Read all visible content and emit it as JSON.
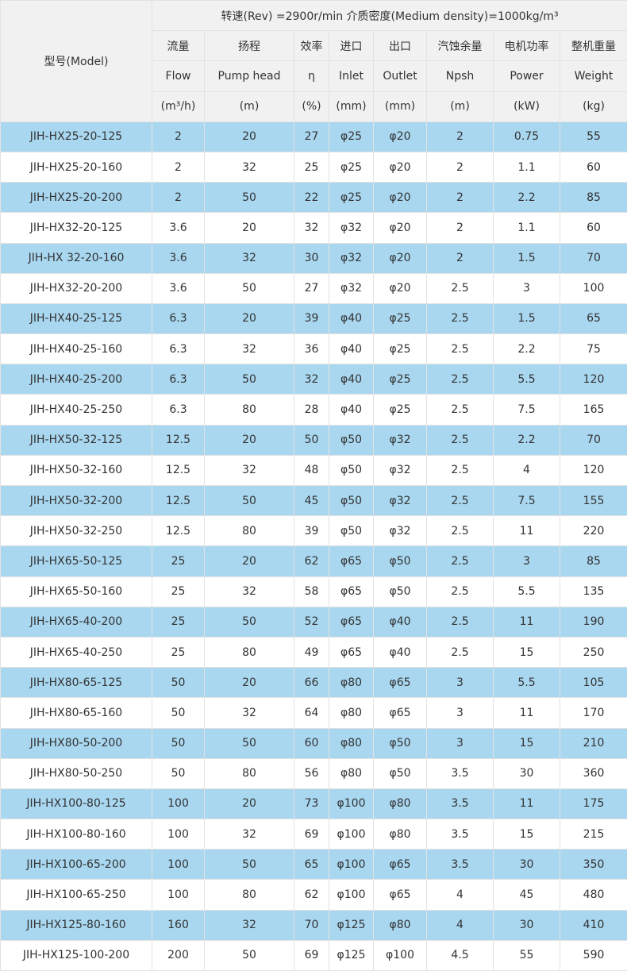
{
  "header": {
    "model_label": "型号(Model)",
    "conditions": "转速(Rev) =2900r/min   介质密度(Medium density)=1000kg/m³",
    "columns": [
      {
        "cn": "流量",
        "en": "Flow",
        "unit": "(m³/h)"
      },
      {
        "cn": "扬程",
        "en": "Pump head",
        "unit": "(m)"
      },
      {
        "cn": "效率",
        "en": "η",
        "unit": "(%)"
      },
      {
        "cn": "进口",
        "en": "Inlet",
        "unit": "(mm)"
      },
      {
        "cn": "出口",
        "en": "Outlet",
        "unit": "(mm)"
      },
      {
        "cn": "汽蚀余量",
        "en": "Npsh",
        "unit": "(m)"
      },
      {
        "cn": "电机功率",
        "en": "Power",
        "unit": "(kW)"
      },
      {
        "cn": "整机重量",
        "en": "Weight",
        "unit": "(kg)"
      }
    ]
  },
  "colors": {
    "header_bg": "#f1f1f1",
    "alt_row_bg": "#a9d7f0",
    "border": "#e2e2e2"
  },
  "rows": [
    [
      "JIH-HX25-20-125",
      "2",
      "20",
      "27",
      "φ25",
      "φ20",
      "2",
      "0.75",
      "55"
    ],
    [
      "JIH-HX25-20-160",
      "2",
      "32",
      "25",
      "φ25",
      "φ20",
      "2",
      "1.1",
      "60"
    ],
    [
      "JIH-HX25-20-200",
      "2",
      "50",
      "22",
      "φ25",
      "φ20",
      "2",
      "2.2",
      "85"
    ],
    [
      "JIH-HX32-20-125",
      "3.6",
      "20",
      "32",
      "φ32",
      "φ20",
      "2",
      "1.1",
      "60"
    ],
    [
      "JIH-HX 32-20-160",
      "3.6",
      "32",
      "30",
      "φ32",
      "φ20",
      "2",
      "1.5",
      "70"
    ],
    [
      "JIH-HX32-20-200",
      "3.6",
      "50",
      "27",
      "φ32",
      "φ20",
      "2.5",
      "3",
      "100"
    ],
    [
      "JIH-HX40-25-125",
      "6.3",
      "20",
      "39",
      "φ40",
      "φ25",
      "2.5",
      "1.5",
      "65"
    ],
    [
      "JIH-HX40-25-160",
      "6.3",
      "32",
      "36",
      "φ40",
      "φ25",
      "2.5",
      "2.2",
      "75"
    ],
    [
      "JIH-HX40-25-200",
      "6.3",
      "50",
      "32",
      "φ40",
      "φ25",
      "2.5",
      "5.5",
      "120"
    ],
    [
      "JIH-HX40-25-250",
      "6.3",
      "80",
      "28",
      "φ40",
      "φ25",
      "2.5",
      "7.5",
      "165"
    ],
    [
      "JIH-HX50-32-125",
      "12.5",
      "20",
      "50",
      "φ50",
      "φ32",
      "2.5",
      "2.2",
      "70"
    ],
    [
      "JIH-HX50-32-160",
      "12.5",
      "32",
      "48",
      "φ50",
      "φ32",
      "2.5",
      "4",
      "120"
    ],
    [
      "JIH-HX50-32-200",
      "12.5",
      "50",
      "45",
      "φ50",
      "φ32",
      "2.5",
      "7.5",
      "155"
    ],
    [
      "JIH-HX50-32-250",
      "12.5",
      "80",
      "39",
      "φ50",
      "φ32",
      "2.5",
      "11",
      "220"
    ],
    [
      "JIH-HX65-50-125",
      "25",
      "20",
      "62",
      "φ65",
      "φ50",
      "2.5",
      "3",
      "85"
    ],
    [
      "JIH-HX65-50-160",
      "25",
      "32",
      "58",
      "φ65",
      "φ50",
      "2.5",
      "5.5",
      "135"
    ],
    [
      "JIH-HX65-40-200",
      "25",
      "50",
      "52",
      "φ65",
      "φ40",
      "2.5",
      "11",
      "190"
    ],
    [
      "JIH-HX65-40-250",
      "25",
      "80",
      "49",
      "φ65",
      "φ40",
      "2.5",
      "15",
      "250"
    ],
    [
      "JIH-HX80-65-125",
      "50",
      "20",
      "66",
      "φ80",
      "φ65",
      "3",
      "5.5",
      "105"
    ],
    [
      "JIH-HX80-65-160",
      "50",
      "32",
      "64",
      "φ80",
      "φ65",
      "3",
      "11",
      "170"
    ],
    [
      "JIH-HX80-50-200",
      "50",
      "50",
      "60",
      "φ80",
      "φ50",
      "3",
      "15",
      "210"
    ],
    [
      "JIH-HX80-50-250",
      "50",
      "80",
      "56",
      "φ80",
      "φ50",
      "3.5",
      "30",
      "360"
    ],
    [
      "JIH-HX100-80-125",
      "100",
      "20",
      "73",
      "φ100",
      "φ80",
      "3.5",
      "11",
      "175"
    ],
    [
      "JIH-HX100-80-160",
      "100",
      "32",
      "69",
      "φ100",
      "φ80",
      "3.5",
      "15",
      "215"
    ],
    [
      "JIH-HX100-65-200",
      "100",
      "50",
      "65",
      "φ100",
      "φ65",
      "3.5",
      "30",
      "350"
    ],
    [
      "JIH-HX100-65-250",
      "100",
      "80",
      "62",
      "φ100",
      "φ65",
      "4",
      "45",
      "480"
    ],
    [
      "JIH-HX125-80-160",
      "160",
      "32",
      "70",
      "φ125",
      "φ80",
      "4",
      "30",
      "410"
    ],
    [
      "JIH-HX125-100-200",
      "200",
      "50",
      "69",
      "φ125",
      "φ100",
      "4.5",
      "55",
      "590"
    ]
  ]
}
